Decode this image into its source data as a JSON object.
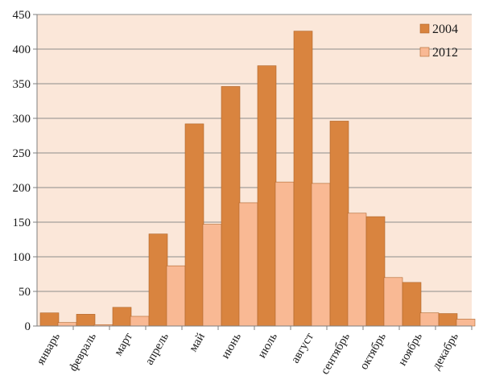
{
  "chart_data": {
    "type": "bar",
    "categories": [
      "январь",
      "февраль",
      "март",
      "апрель",
      "май",
      "июнь",
      "июль",
      "август",
      "сентябрь",
      "октябрь",
      "ноябрь",
      "декабрь"
    ],
    "series": [
      {
        "name": "2004",
        "color": "#d9843f",
        "values": [
          19,
          17,
          27,
          133,
          292,
          346,
          376,
          426,
          296,
          158,
          63,
          18
        ]
      },
      {
        "name": "2012",
        "color": "#f9b994",
        "values": [
          5,
          2,
          14,
          87,
          147,
          178,
          208,
          206,
          163,
          70,
          19,
          10
        ]
      }
    ],
    "ylim": [
      0,
      450
    ],
    "yticks": [
      0,
      50,
      100,
      150,
      200,
      250,
      300,
      350,
      400,
      450
    ],
    "grid": true,
    "legend": "top-right",
    "plot_background": "#fbe7d9",
    "title": "",
    "xlabel": "",
    "ylabel": ""
  }
}
